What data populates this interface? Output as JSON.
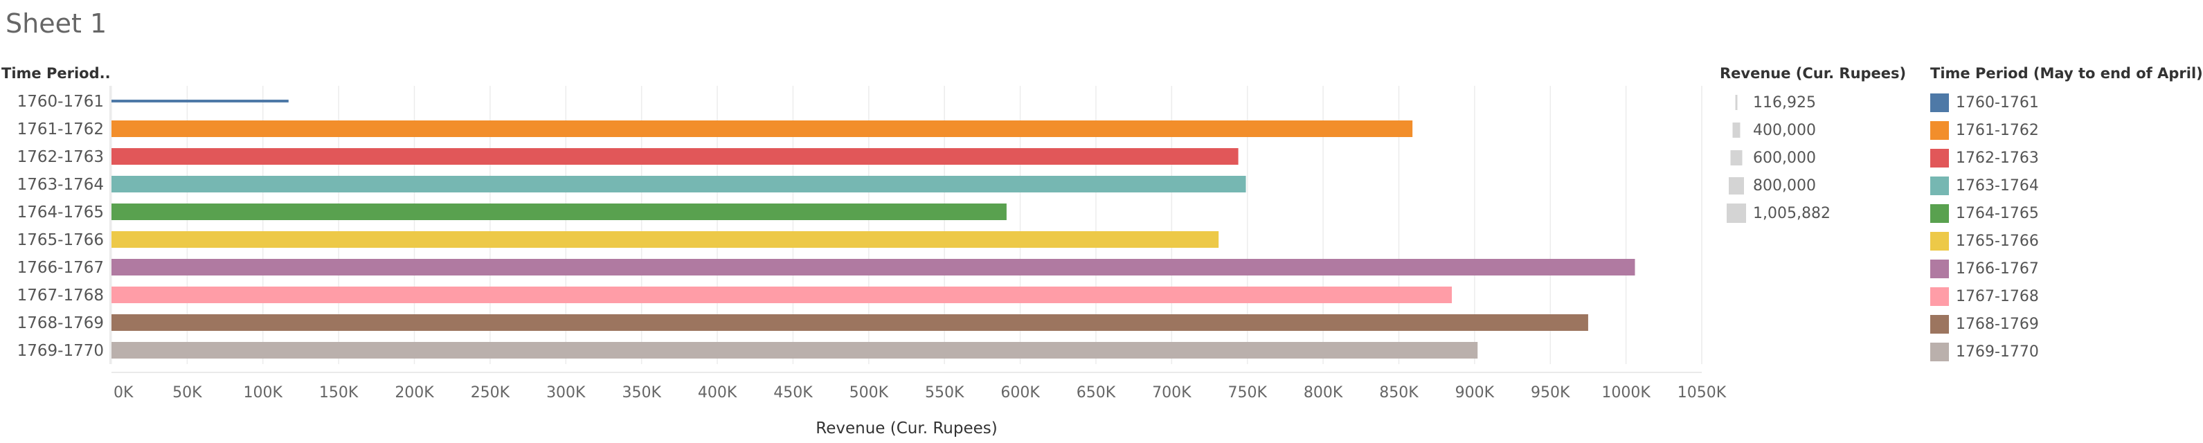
{
  "sheet": {
    "title": "Sheet 1"
  },
  "chart_data": {
    "type": "bar",
    "orientation": "horizontal",
    "row_header": "Time Period..",
    "categories": [
      "1760-1761",
      "1761-1762",
      "1762-1763",
      "1763-1764",
      "1764-1765",
      "1765-1766",
      "1766-1767",
      "1767-1768",
      "1768-1769",
      "1769-1770"
    ],
    "values": [
      116925,
      859000,
      744000,
      749000,
      591000,
      731000,
      1005882,
      885000,
      975000,
      902000
    ],
    "colors": [
      "#4e79a7",
      "#f28e2b",
      "#e15759",
      "#76b7b2",
      "#59a14f",
      "#edc948",
      "#b07aa1",
      "#ff9da7",
      "#9c755f",
      "#bab0ac"
    ],
    "xlabel": "Revenue (Cur. Rupees)",
    "xlim": [
      0,
      1050000
    ],
    "x_ticks": [
      0,
      50000,
      100000,
      150000,
      200000,
      250000,
      300000,
      350000,
      400000,
      450000,
      500000,
      550000,
      600000,
      650000,
      700000,
      750000,
      800000,
      850000,
      900000,
      950000,
      1000000,
      1050000
    ],
    "x_tick_labels": [
      "0K",
      "50K",
      "100K",
      "150K",
      "200K",
      "250K",
      "300K",
      "350K",
      "400K",
      "450K",
      "500K",
      "550K",
      "600K",
      "650K",
      "700K",
      "750K",
      "800K",
      "850K",
      "900K",
      "950K",
      "1000K",
      "1050K"
    ],
    "grid": true,
    "size_legend": {
      "title": "Revenue (Cur. Rupees)",
      "items": [
        {
          "label": "116,925",
          "value": 116925
        },
        {
          "label": "400,000",
          "value": 400000
        },
        {
          "label": "600,000",
          "value": 600000
        },
        {
          "label": "800,000",
          "value": 800000
        },
        {
          "label": "1,005,882",
          "value": 1005882
        }
      ]
    },
    "color_legend": {
      "title": "Time Period (May to end of April)",
      "items": [
        "1760-1761",
        "1761-1762",
        "1762-1763",
        "1763-1764",
        "1764-1765",
        "1765-1766",
        "1766-1767",
        "1767-1768",
        "1768-1769",
        "1769-1770"
      ]
    },
    "legend_placement": "right"
  }
}
